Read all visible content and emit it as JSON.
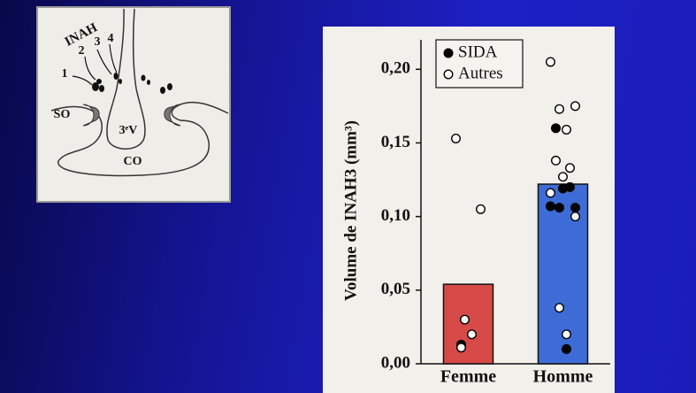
{
  "diagram": {
    "labels": [
      "INAH",
      "1",
      "2",
      "3",
      "4",
      "SO",
      "3ᵉV",
      "CO"
    ]
  },
  "chart_data": {
    "type": "bar-dots",
    "ylabel": "Volume de INAH3 (mm³)",
    "categories": [
      "Femme",
      "Homme"
    ],
    "bars": {
      "values": [
        0.054,
        0.122
      ],
      "colors": [
        "#d64a48",
        "#3e6cd6"
      ]
    },
    "points": [
      {
        "name": "SIDA",
        "color": "#000000",
        "filled": true,
        "values": [
          [
            0.013
          ],
          [
            0.16,
            0.12,
            0.119,
            0.107,
            0.106,
            0.106,
            0.01
          ]
        ]
      },
      {
        "name": "Autres",
        "color": "#000000",
        "filled": false,
        "values": [
          [
            0.153,
            0.105,
            0.03,
            0.02,
            0.011
          ],
          [
            0.205,
            0.175,
            0.173,
            0.159,
            0.138,
            0.133,
            0.127,
            0.116,
            0.1,
            0.038,
            0.02
          ]
        ]
      }
    ],
    "ylim": [
      0,
      0.22
    ],
    "yticks": [
      {
        "value": 0,
        "label": "0,00"
      },
      {
        "value": 0.05,
        "label": "0,05"
      },
      {
        "value": 0.1,
        "label": "0,10"
      },
      {
        "value": 0.15,
        "label": "0,15"
      },
      {
        "value": 0.2,
        "label": "0,20"
      }
    ],
    "legend": "upper left"
  }
}
